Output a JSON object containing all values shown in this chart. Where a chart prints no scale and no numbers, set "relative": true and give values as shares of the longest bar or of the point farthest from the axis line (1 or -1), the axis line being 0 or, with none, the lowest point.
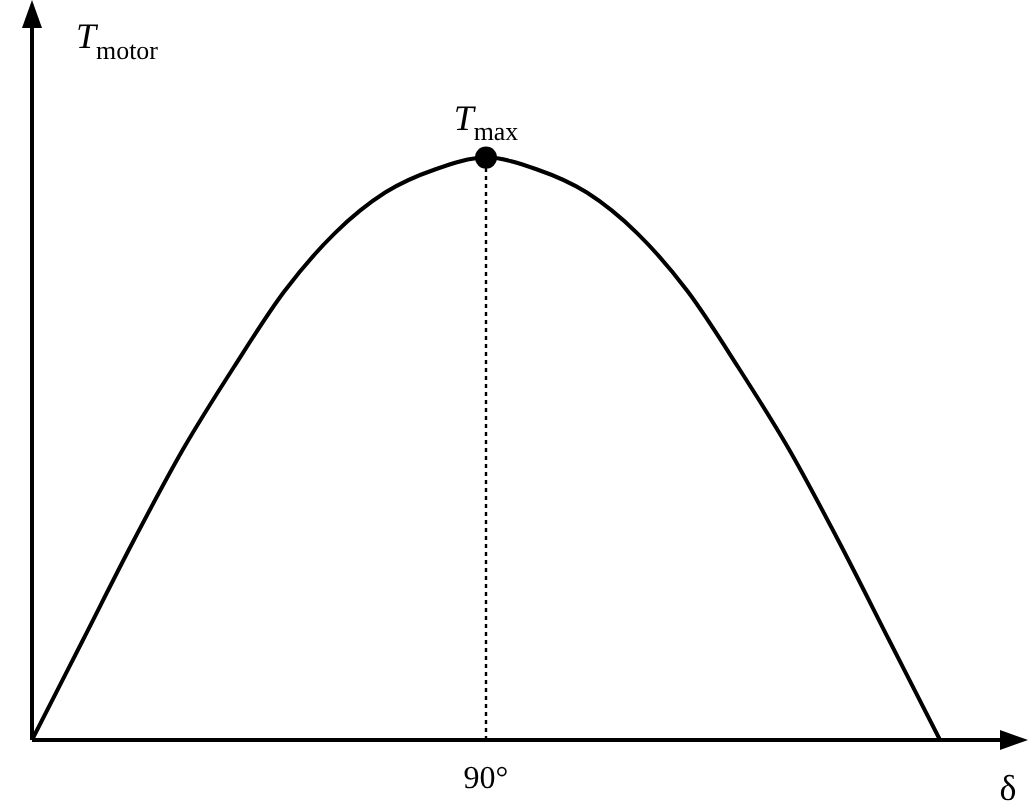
{
  "chart_data": {
    "type": "line",
    "relative": true,
    "xlabel": "δ",
    "ylabel": "T$_{motor}$",
    "categories": [
      null,
      null,
      null,
      null,
      null,
      null,
      null,
      null,
      null,
      null,
      null,
      null,
      null,
      null,
      null,
      null,
      null,
      null,
      null
    ],
    "legend": false,
    "series": [
      {
        "color": "#000000",
        "marker": "none",
        "values": [
          0,
          0.17,
          0.34,
          0.5,
          0.64,
          0.77,
          0.87,
          0.94,
          0.98,
          1,
          0.98,
          0.94,
          0.87,
          0.77,
          0.64,
          0.5,
          0.34,
          0.17,
          0
        ]
      }
    ],
    "annotations": [
      "T$_{max}$",
      "90°"
    ]
  }
}
